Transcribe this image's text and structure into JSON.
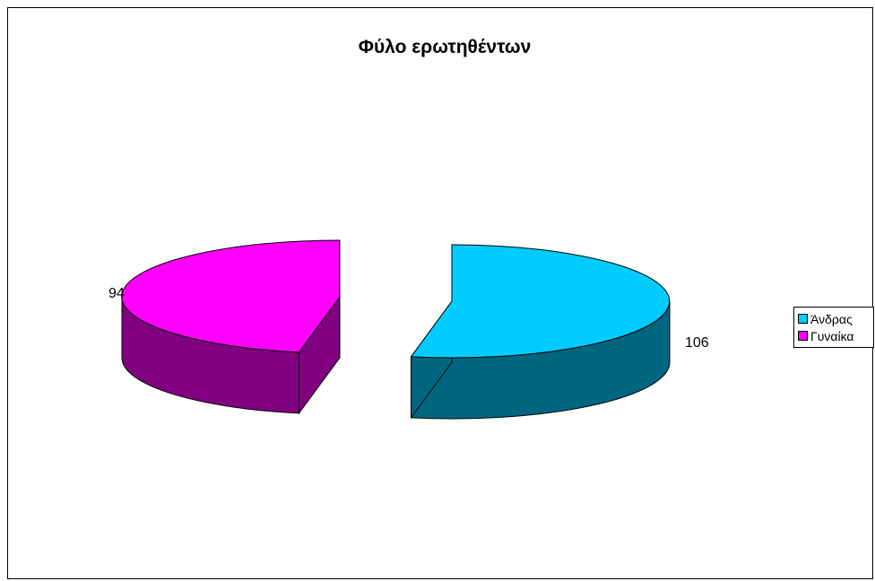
{
  "chart_data": {
    "type": "pie",
    "title": "Φύλο ερωτηθέντων",
    "categories": [
      "Άνδρας",
      "Γυναίκα"
    ],
    "values": [
      106,
      94
    ],
    "data_labels": [
      "106",
      "94"
    ],
    "colors": {
      "top": [
        "#00CCFF",
        "#FF00FF"
      ],
      "side": [
        "#006680",
        "#800080"
      ]
    },
    "exploded": true,
    "three_d": true,
    "legend_position": "right"
  }
}
